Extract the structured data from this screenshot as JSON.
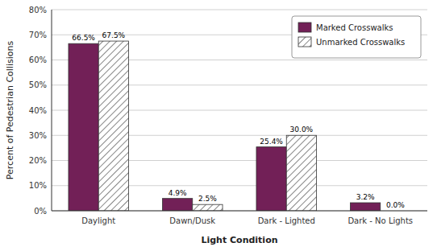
{
  "chart_data": {
    "type": "bar",
    "xlabel": "Light Condition",
    "ylabel": "Percent of Pedestrian Collisions",
    "categories": [
      "Daylight",
      "Dawn/Dusk",
      "Dark - Lighted",
      "Dark - No Lights"
    ],
    "series": [
      {
        "name": "Marked Crosswalks",
        "color": "#722057",
        "values": [
          66.5,
          4.9,
          25.4,
          3.2
        ],
        "value_labels": [
          "66.5%",
          "4.9%",
          "25.4%",
          "3.2%"
        ]
      },
      {
        "name": "Unmarked Crosswalks",
        "color": "#ffffff",
        "values": [
          67.5,
          2.5,
          30.0,
          0.0
        ],
        "value_labels": [
          "67.5%",
          "2.5%",
          "30.0%",
          "0.0%"
        ]
      }
    ],
    "ylim": [
      0,
      80
    ],
    "yticks": [
      {
        "value": 0,
        "label": "0%"
      },
      {
        "value": 10,
        "label": "10%"
      },
      {
        "value": 20,
        "label": "20%"
      },
      {
        "value": 30,
        "label": "30%"
      },
      {
        "value": 40,
        "label": "40%"
      },
      {
        "value": 50,
        "label": "50%"
      },
      {
        "value": 60,
        "label": "60%"
      },
      {
        "value": 70,
        "label": "70%"
      },
      {
        "value": 80,
        "label": "80%"
      }
    ],
    "grid": true,
    "legend": "upper right",
    "data_labels": true
  }
}
